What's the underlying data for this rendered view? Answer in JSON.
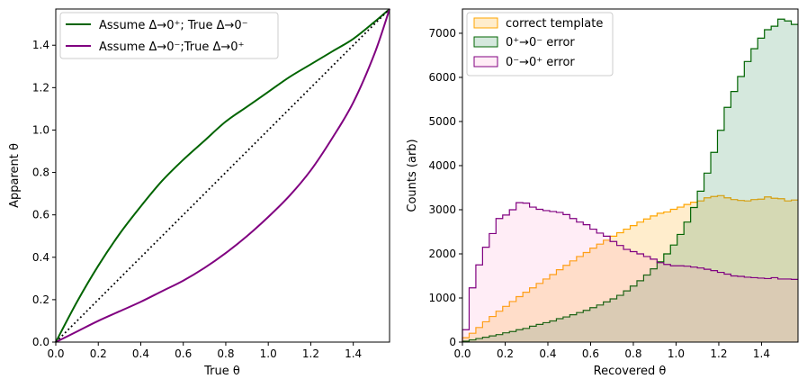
{
  "chart_data": [
    {
      "type": "line",
      "title": "",
      "xlabel": "True θ",
      "ylabel": "Apparent θ",
      "xlim": [
        0,
        1.5708
      ],
      "ylim": [
        0,
        1.5708
      ],
      "xticks": [
        "0.0",
        "0.2",
        "0.4",
        "0.6",
        "0.8",
        "1.0",
        "1.2",
        "1.4"
      ],
      "yticks": [
        "0.0",
        "0.2",
        "0.4",
        "0.6",
        "0.8",
        "1.0",
        "1.2",
        "1.4"
      ],
      "grid": false,
      "legend_position": "top-left",
      "series": [
        {
          "name": "Assume Δ→0⁺; True Δ→0⁻",
          "color": "#006400",
          "style": "solid",
          "x": [
            0.0,
            0.1,
            0.2,
            0.3,
            0.4,
            0.5,
            0.6,
            0.7,
            0.8,
            0.9,
            1.0,
            1.1,
            1.2,
            1.3,
            1.4,
            1.5,
            1.5708
          ],
          "y": [
            0.0,
            0.19,
            0.36,
            0.51,
            0.64,
            0.76,
            0.86,
            0.95,
            1.04,
            1.11,
            1.18,
            1.25,
            1.31,
            1.37,
            1.43,
            1.51,
            1.5708
          ]
        },
        {
          "name": "Assume Δ→0⁻;True Δ→0⁺",
          "color": "#800080",
          "style": "solid",
          "x": [
            0.0,
            0.1,
            0.2,
            0.3,
            0.4,
            0.5,
            0.6,
            0.7,
            0.8,
            0.9,
            1.0,
            1.1,
            1.2,
            1.3,
            1.4,
            1.5,
            1.5708
          ],
          "y": [
            0.0,
            0.05,
            0.1,
            0.145,
            0.19,
            0.24,
            0.29,
            0.35,
            0.42,
            0.5,
            0.59,
            0.69,
            0.81,
            0.96,
            1.13,
            1.36,
            1.5708
          ]
        },
        {
          "name": "",
          "color": "#000000",
          "style": "dotted",
          "x": [
            0.0,
            1.5708
          ],
          "y": [
            0.0,
            1.5708
          ]
        }
      ]
    },
    {
      "type": "histogram",
      "title": "",
      "xlabel": "Recovered θ",
      "ylabel": "Counts (arb)",
      "xlim": [
        0,
        1.5708
      ],
      "ylim": [
        0,
        7550
      ],
      "xticks": [
        "0.0",
        "0.2",
        "0.4",
        "0.6",
        "0.8",
        "1.0",
        "1.2",
        "1.4"
      ],
      "yticks": [
        "0",
        "1000",
        "2000",
        "3000",
        "4000",
        "5000",
        "6000",
        "7000"
      ],
      "grid": false,
      "legend_position": "top-left",
      "bin_width": 0.0314,
      "series": [
        {
          "name": "correct template",
          "edge_color": "#FFA500",
          "fill_color": "#FFA500",
          "fill_opacity": 0.2,
          "values": [
            100,
            200,
            330,
            460,
            580,
            700,
            810,
            920,
            1030,
            1130,
            1230,
            1330,
            1430,
            1530,
            1640,
            1740,
            1840,
            1940,
            2030,
            2130,
            2220,
            2310,
            2400,
            2480,
            2560,
            2640,
            2720,
            2790,
            2860,
            2920,
            2950,
            3010,
            3060,
            3120,
            3170,
            3200,
            3270,
            3300,
            3320,
            3270,
            3230,
            3210,
            3200,
            3230,
            3240,
            3290,
            3260,
            3250,
            3200,
            3220
          ]
        },
        {
          "name": "0⁺→0⁻ error",
          "edge_color": "#006400",
          "fill_color": "#2E8B57",
          "fill_opacity": 0.2,
          "values": [
            20,
            50,
            80,
            110,
            140,
            170,
            210,
            240,
            280,
            310,
            360,
            400,
            440,
            480,
            530,
            570,
            620,
            670,
            720,
            780,
            840,
            910,
            980,
            1060,
            1160,
            1270,
            1390,
            1520,
            1660,
            1820,
            2000,
            2200,
            2440,
            2720,
            3050,
            3420,
            3830,
            4300,
            4800,
            5320,
            5680,
            6020,
            6360,
            6650,
            6890,
            7080,
            7160,
            7320,
            7280,
            7200
          ]
        },
        {
          "name": "0⁻→0⁺ error",
          "edge_color": "#800080",
          "fill_color": "#FF69B4",
          "fill_opacity": 0.12,
          "values": [
            280,
            1230,
            1750,
            2150,
            2460,
            2800,
            2880,
            3000,
            3160,
            3150,
            3060,
            3010,
            2980,
            2960,
            2940,
            2890,
            2800,
            2720,
            2660,
            2560,
            2470,
            2400,
            2280,
            2190,
            2100,
            2050,
            2000,
            1940,
            1880,
            1800,
            1760,
            1730,
            1730,
            1720,
            1700,
            1680,
            1650,
            1620,
            1580,
            1540,
            1500,
            1490,
            1470,
            1460,
            1450,
            1440,
            1460,
            1430,
            1430,
            1420
          ]
        }
      ]
    }
  ]
}
